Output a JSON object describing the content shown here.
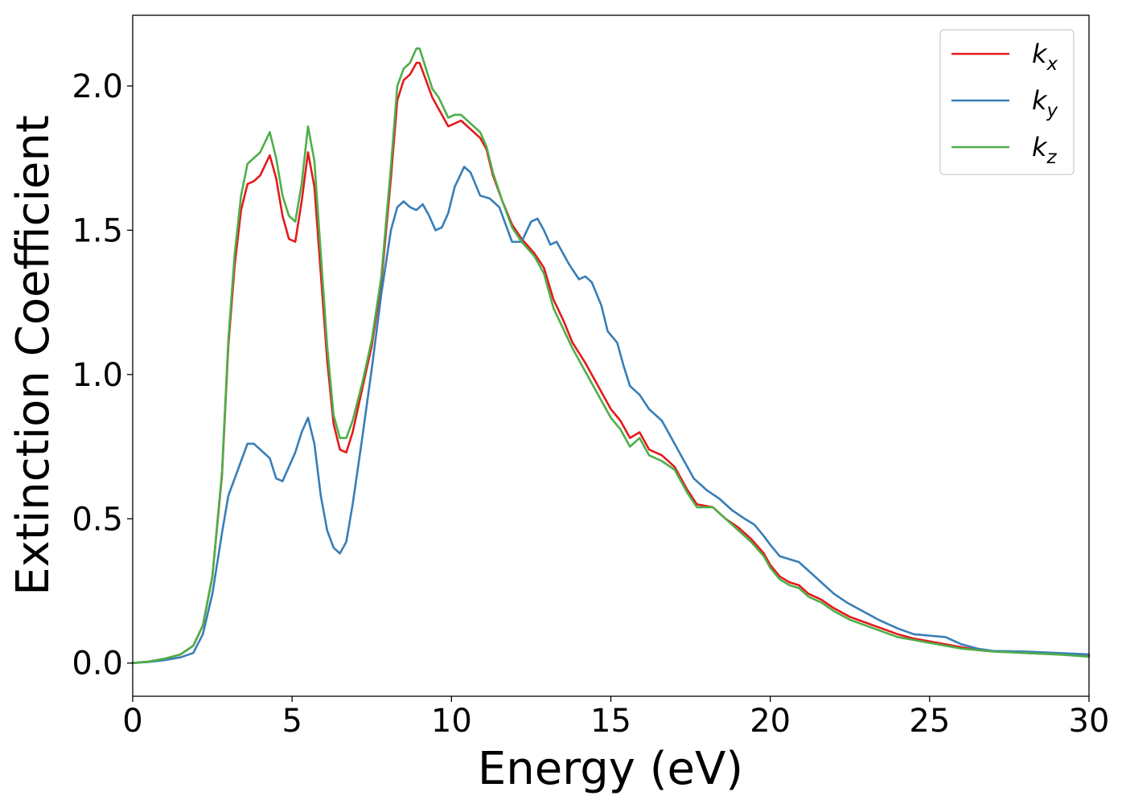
{
  "chart_data": {
    "type": "line",
    "xlabel": "Energy (eV)",
    "ylabel": "Extinction Coefficient",
    "xlim": [
      0,
      30
    ],
    "ylim": [
      -0.115,
      2.245
    ],
    "x_ticks": [
      "0",
      "5",
      "10",
      "15",
      "20",
      "25",
      "30"
    ],
    "y_ticks": [
      "0.0",
      "0.5",
      "1.0",
      "1.5",
      "2.0"
    ],
    "grid": false,
    "legend_position": "top-right",
    "series": [
      {
        "name": "k_x",
        "label_main": "k",
        "label_sub": "x",
        "color": "#e41a1c",
        "points": [
          [
            0,
            0
          ],
          [
            0.5,
            0.005
          ],
          [
            1,
            0.015
          ],
          [
            1.5,
            0.03
          ],
          [
            1.9,
            0.06
          ],
          [
            2.2,
            0.13
          ],
          [
            2.5,
            0.3
          ],
          [
            2.8,
            0.65
          ],
          [
            3.0,
            1.1
          ],
          [
            3.2,
            1.38
          ],
          [
            3.4,
            1.57
          ],
          [
            3.6,
            1.66
          ],
          [
            3.8,
            1.67
          ],
          [
            4.0,
            1.69
          ],
          [
            4.3,
            1.76
          ],
          [
            4.5,
            1.68
          ],
          [
            4.7,
            1.55
          ],
          [
            4.9,
            1.47
          ],
          [
            5.1,
            1.46
          ],
          [
            5.3,
            1.6
          ],
          [
            5.5,
            1.77
          ],
          [
            5.7,
            1.65
          ],
          [
            5.9,
            1.35
          ],
          [
            6.1,
            1.05
          ],
          [
            6.3,
            0.83
          ],
          [
            6.5,
            0.74
          ],
          [
            6.7,
            0.73
          ],
          [
            6.9,
            0.8
          ],
          [
            7.2,
            0.95
          ],
          [
            7.5,
            1.1
          ],
          [
            7.8,
            1.32
          ],
          [
            8.1,
            1.68
          ],
          [
            8.3,
            1.95
          ],
          [
            8.5,
            2.02
          ],
          [
            8.7,
            2.04
          ],
          [
            8.9,
            2.08
          ],
          [
            9.0,
            2.08
          ],
          [
            9.2,
            2.02
          ],
          [
            9.4,
            1.96
          ],
          [
            9.6,
            1.92
          ],
          [
            9.9,
            1.86
          ],
          [
            10.1,
            1.87
          ],
          [
            10.3,
            1.88
          ],
          [
            10.6,
            1.85
          ],
          [
            10.9,
            1.82
          ],
          [
            11.1,
            1.78
          ],
          [
            11.3,
            1.69
          ],
          [
            11.6,
            1.6
          ],
          [
            11.9,
            1.52
          ],
          [
            12.2,
            1.47
          ],
          [
            12.6,
            1.42
          ],
          [
            12.9,
            1.37
          ],
          [
            13.2,
            1.26
          ],
          [
            13.5,
            1.19
          ],
          [
            13.8,
            1.11
          ],
          [
            14.2,
            1.04
          ],
          [
            14.6,
            0.96
          ],
          [
            15.0,
            0.88
          ],
          [
            15.3,
            0.84
          ],
          [
            15.6,
            0.78
          ],
          [
            15.9,
            0.8
          ],
          [
            16.2,
            0.74
          ],
          [
            16.6,
            0.72
          ],
          [
            17.0,
            0.68
          ],
          [
            17.4,
            0.6
          ],
          [
            17.7,
            0.55
          ],
          [
            18.2,
            0.54
          ],
          [
            18.6,
            0.5
          ],
          [
            19.0,
            0.47
          ],
          [
            19.4,
            0.43
          ],
          [
            19.8,
            0.38
          ],
          [
            20.0,
            0.34
          ],
          [
            20.3,
            0.3
          ],
          [
            20.6,
            0.28
          ],
          [
            20.9,
            0.27
          ],
          [
            21.2,
            0.24
          ],
          [
            21.6,
            0.22
          ],
          [
            22.0,
            0.19
          ],
          [
            22.5,
            0.16
          ],
          [
            23.0,
            0.14
          ],
          [
            23.5,
            0.12
          ],
          [
            24.0,
            0.1
          ],
          [
            24.5,
            0.085
          ],
          [
            25.0,
            0.075
          ],
          [
            25.5,
            0.065
          ],
          [
            26.0,
            0.055
          ],
          [
            26.5,
            0.045
          ],
          [
            27.0,
            0.04
          ],
          [
            28.0,
            0.035
          ],
          [
            29.0,
            0.03
          ],
          [
            30.0,
            0.025
          ]
        ]
      },
      {
        "name": "k_y",
        "label_main": "k",
        "label_sub": "y",
        "color": "#377eb8",
        "points": [
          [
            0,
            0
          ],
          [
            0.5,
            0.004
          ],
          [
            1,
            0.01
          ],
          [
            1.5,
            0.02
          ],
          [
            1.9,
            0.035
          ],
          [
            2.2,
            0.1
          ],
          [
            2.5,
            0.24
          ],
          [
            2.8,
            0.45
          ],
          [
            3.0,
            0.58
          ],
          [
            3.2,
            0.64
          ],
          [
            3.4,
            0.7
          ],
          [
            3.6,
            0.76
          ],
          [
            3.8,
            0.76
          ],
          [
            4.0,
            0.74
          ],
          [
            4.3,
            0.71
          ],
          [
            4.5,
            0.64
          ],
          [
            4.7,
            0.63
          ],
          [
            4.9,
            0.68
          ],
          [
            5.1,
            0.73
          ],
          [
            5.3,
            0.8
          ],
          [
            5.5,
            0.85
          ],
          [
            5.7,
            0.76
          ],
          [
            5.9,
            0.58
          ],
          [
            6.1,
            0.46
          ],
          [
            6.3,
            0.4
          ],
          [
            6.5,
            0.38
          ],
          [
            6.7,
            0.42
          ],
          [
            6.9,
            0.55
          ],
          [
            7.2,
            0.78
          ],
          [
            7.5,
            1.02
          ],
          [
            7.8,
            1.28
          ],
          [
            8.1,
            1.5
          ],
          [
            8.3,
            1.58
          ],
          [
            8.5,
            1.6
          ],
          [
            8.7,
            1.58
          ],
          [
            8.9,
            1.57
          ],
          [
            9.1,
            1.59
          ],
          [
            9.3,
            1.55
          ],
          [
            9.5,
            1.5
          ],
          [
            9.7,
            1.51
          ],
          [
            9.9,
            1.56
          ],
          [
            10.1,
            1.65
          ],
          [
            10.4,
            1.72
          ],
          [
            10.6,
            1.7
          ],
          [
            10.9,
            1.62
          ],
          [
            11.2,
            1.61
          ],
          [
            11.5,
            1.58
          ],
          [
            11.7,
            1.52
          ],
          [
            11.9,
            1.46
          ],
          [
            12.2,
            1.46
          ],
          [
            12.5,
            1.53
          ],
          [
            12.7,
            1.54
          ],
          [
            12.9,
            1.5
          ],
          [
            13.1,
            1.45
          ],
          [
            13.3,
            1.46
          ],
          [
            13.5,
            1.42
          ],
          [
            13.7,
            1.38
          ],
          [
            14.0,
            1.33
          ],
          [
            14.2,
            1.34
          ],
          [
            14.4,
            1.32
          ],
          [
            14.7,
            1.24
          ],
          [
            14.9,
            1.15
          ],
          [
            15.2,
            1.11
          ],
          [
            15.4,
            1.03
          ],
          [
            15.6,
            0.96
          ],
          [
            15.9,
            0.93
          ],
          [
            16.2,
            0.88
          ],
          [
            16.6,
            0.84
          ],
          [
            16.9,
            0.78
          ],
          [
            17.2,
            0.72
          ],
          [
            17.6,
            0.64
          ],
          [
            18.0,
            0.6
          ],
          [
            18.4,
            0.57
          ],
          [
            18.8,
            0.53
          ],
          [
            19.2,
            0.5
          ],
          [
            19.5,
            0.48
          ],
          [
            19.8,
            0.44
          ],
          [
            20.0,
            0.41
          ],
          [
            20.3,
            0.37
          ],
          [
            20.6,
            0.36
          ],
          [
            20.9,
            0.35
          ],
          [
            21.2,
            0.32
          ],
          [
            21.6,
            0.28
          ],
          [
            22.0,
            0.24
          ],
          [
            22.4,
            0.21
          ],
          [
            22.9,
            0.18
          ],
          [
            23.4,
            0.15
          ],
          [
            24.0,
            0.12
          ],
          [
            24.5,
            0.1
          ],
          [
            25.0,
            0.095
          ],
          [
            25.5,
            0.09
          ],
          [
            26.0,
            0.065
          ],
          [
            26.5,
            0.05
          ],
          [
            27.0,
            0.042
          ],
          [
            28.0,
            0.04
          ],
          [
            29.0,
            0.035
          ],
          [
            30.0,
            0.03
          ]
        ]
      },
      {
        "name": "k_z",
        "label_main": "k",
        "label_sub": "z",
        "color": "#4daf4a",
        "points": [
          [
            0,
            0
          ],
          [
            0.5,
            0.005
          ],
          [
            1,
            0.015
          ],
          [
            1.5,
            0.03
          ],
          [
            1.9,
            0.06
          ],
          [
            2.2,
            0.13
          ],
          [
            2.5,
            0.3
          ],
          [
            2.8,
            0.66
          ],
          [
            3.0,
            1.12
          ],
          [
            3.2,
            1.42
          ],
          [
            3.4,
            1.62
          ],
          [
            3.6,
            1.73
          ],
          [
            3.8,
            1.75
          ],
          [
            4.0,
            1.77
          ],
          [
            4.3,
            1.84
          ],
          [
            4.5,
            1.75
          ],
          [
            4.7,
            1.62
          ],
          [
            4.9,
            1.55
          ],
          [
            5.1,
            1.53
          ],
          [
            5.3,
            1.66
          ],
          [
            5.5,
            1.86
          ],
          [
            5.7,
            1.74
          ],
          [
            5.9,
            1.42
          ],
          [
            6.1,
            1.1
          ],
          [
            6.3,
            0.86
          ],
          [
            6.5,
            0.78
          ],
          [
            6.7,
            0.78
          ],
          [
            6.9,
            0.84
          ],
          [
            7.2,
            0.97
          ],
          [
            7.5,
            1.12
          ],
          [
            7.8,
            1.34
          ],
          [
            8.1,
            1.72
          ],
          [
            8.3,
            2.0
          ],
          [
            8.5,
            2.06
          ],
          [
            8.7,
            2.08
          ],
          [
            8.9,
            2.13
          ],
          [
            9.0,
            2.13
          ],
          [
            9.2,
            2.06
          ],
          [
            9.4,
            1.99
          ],
          [
            9.6,
            1.96
          ],
          [
            9.9,
            1.89
          ],
          [
            10.1,
            1.9
          ],
          [
            10.3,
            1.9
          ],
          [
            10.6,
            1.87
          ],
          [
            10.9,
            1.84
          ],
          [
            11.1,
            1.79
          ],
          [
            11.3,
            1.7
          ],
          [
            11.6,
            1.6
          ],
          [
            11.9,
            1.51
          ],
          [
            12.2,
            1.46
          ],
          [
            12.6,
            1.41
          ],
          [
            12.9,
            1.35
          ],
          [
            13.2,
            1.23
          ],
          [
            13.5,
            1.16
          ],
          [
            13.8,
            1.09
          ],
          [
            14.2,
            1.01
          ],
          [
            14.6,
            0.93
          ],
          [
            15.0,
            0.85
          ],
          [
            15.3,
            0.81
          ],
          [
            15.6,
            0.75
          ],
          [
            15.9,
            0.78
          ],
          [
            16.2,
            0.72
          ],
          [
            16.6,
            0.7
          ],
          [
            17.0,
            0.67
          ],
          [
            17.4,
            0.59
          ],
          [
            17.7,
            0.54
          ],
          [
            18.2,
            0.54
          ],
          [
            18.6,
            0.5
          ],
          [
            19.0,
            0.46
          ],
          [
            19.4,
            0.42
          ],
          [
            19.8,
            0.37
          ],
          [
            20.0,
            0.33
          ],
          [
            20.3,
            0.29
          ],
          [
            20.6,
            0.27
          ],
          [
            20.9,
            0.26
          ],
          [
            21.2,
            0.23
          ],
          [
            21.6,
            0.21
          ],
          [
            22.0,
            0.18
          ],
          [
            22.5,
            0.15
          ],
          [
            23.0,
            0.13
          ],
          [
            23.5,
            0.11
          ],
          [
            24.0,
            0.09
          ],
          [
            24.5,
            0.08
          ],
          [
            25.0,
            0.07
          ],
          [
            25.5,
            0.06
          ],
          [
            26.0,
            0.05
          ],
          [
            26.5,
            0.045
          ],
          [
            27.0,
            0.04
          ],
          [
            28.0,
            0.035
          ],
          [
            29.0,
            0.03
          ],
          [
            30.0,
            0.022
          ]
        ]
      }
    ]
  }
}
